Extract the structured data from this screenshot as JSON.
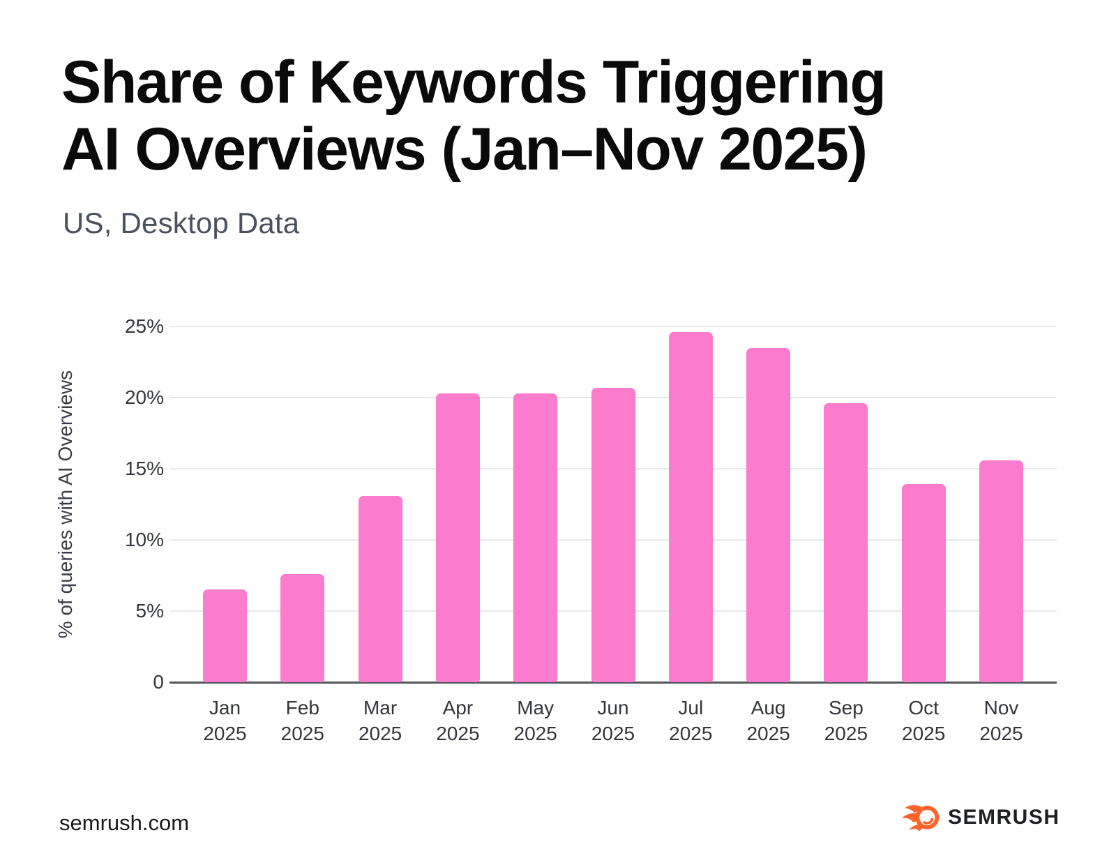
{
  "header": {
    "title_line1": "Share of Keywords Triggering",
    "title_line2": "AI Overviews (Jan–Nov 2025)",
    "subtitle": "US, Desktop Data"
  },
  "footer": {
    "site": "semrush.com",
    "brand": "SEMRUSH",
    "brand_icon": "semrush-flame-icon"
  },
  "colors": {
    "bar": "#fb7bcd",
    "brand_orange": "#ff642d",
    "gridline": "#e8e9ec",
    "axis_line": "#54565b",
    "title_text": "#0a0a0b",
    "subtitle_text": "#4b505b",
    "tick_text": "#33353b"
  },
  "chart_data": {
    "type": "bar",
    "title": "Share of Keywords Triggering AI Overviews (Jan–Nov 2025)",
    "subtitle": "US, Desktop Data",
    "xlabel": "",
    "ylabel": "% of queries with AI Overviews",
    "categories": [
      "Jan 2025",
      "Feb 2025",
      "Mar 2025",
      "Apr 2025",
      "May 2025",
      "Jun 2025",
      "Jul 2025",
      "Aug 2025",
      "Sep 2025",
      "Oct 2025",
      "Nov 2025"
    ],
    "values": [
      6.5,
      7.6,
      13.1,
      20.3,
      20.3,
      20.7,
      24.6,
      23.5,
      19.6,
      13.9,
      15.6
    ],
    "unit": "%",
    "ylim": [
      0,
      25
    ],
    "yticks": [
      0,
      5,
      10,
      15,
      20,
      25
    ],
    "ytick_labels": [
      "0",
      "5%",
      "10%",
      "15%",
      "20%",
      "25%"
    ],
    "grid": true,
    "legend": "none",
    "bar_color": "#fb7bcd"
  }
}
